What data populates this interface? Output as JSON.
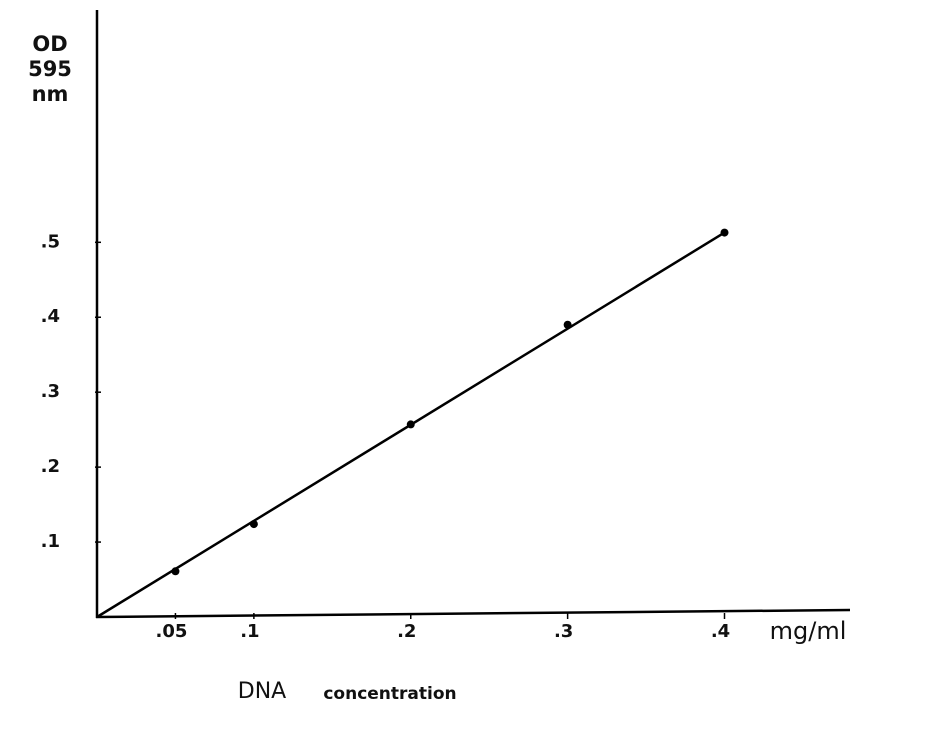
{
  "chart_data": {
    "type": "scatter",
    "y_label_lines": [
      "OD",
      "595",
      "nm"
    ],
    "x_unit": "mg/ml",
    "x_label_words": [
      "DNA",
      "concentration"
    ],
    "x": [
      0.05,
      0.1,
      0.2,
      0.3,
      0.4
    ],
    "values": [
      0.061,
      0.124,
      0.257,
      0.39,
      0.513
    ],
    "fit_line": {
      "x": [
        0,
        0.4
      ],
      "values": [
        0,
        0.513
      ]
    },
    "color": "#000000",
    "xlim": [
      0,
      0.48
    ],
    "ylim": [
      0,
      0.81
    ],
    "xticks": [
      {
        "value": 0.05,
        "label": ".05"
      },
      {
        "value": 0.1,
        "label": ".1"
      },
      {
        "value": 0.2,
        "label": ".2"
      },
      {
        "value": 0.3,
        "label": ".3"
      },
      {
        "value": 0.4,
        "label": ".4"
      }
    ],
    "yticks": [
      {
        "value": 0.1,
        "label": ".1"
      },
      {
        "value": 0.2,
        "label": ".2"
      },
      {
        "value": 0.3,
        "label": ".3"
      },
      {
        "value": 0.4,
        "label": ".4"
      },
      {
        "value": 0.5,
        "label": ".5"
      }
    ]
  }
}
